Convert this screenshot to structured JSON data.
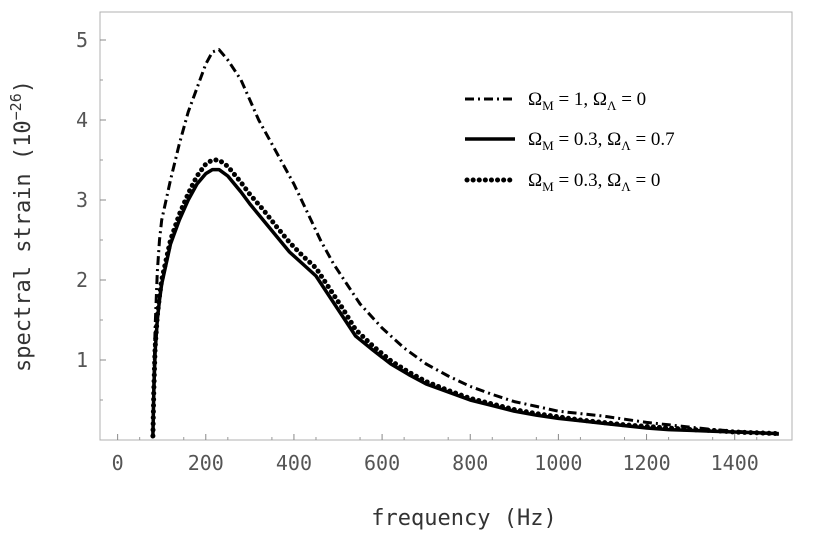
{
  "chart_data": {
    "type": "line",
    "xlabel": "frequency (Hz)",
    "ylabel_prefix": "spectral strain (10",
    "ylabel_exp": "−26",
    "ylabel_suffix": ")",
    "xlim": [
      -40,
      1530
    ],
    "ylim": [
      0,
      5.35
    ],
    "xticks": [
      0,
      200,
      400,
      600,
      800,
      1000,
      1200,
      1400
    ],
    "yticks": [
      1,
      2,
      3,
      4,
      5
    ],
    "grid": false,
    "legend_position": "top-right",
    "series": [
      {
        "name": "ΩM = 1, ΩΛ = 0",
        "legend": {
          "p1": "Ω",
          "s1": "M",
          "p2": " = 1, Ω",
          "s2": "Λ",
          "p3": " = 0"
        },
        "style": "dashdot",
        "x": [
          80,
          82,
          85,
          90,
          95,
          100,
          110,
          120,
          140,
          160,
          180,
          200,
          215,
          230,
          250,
          280,
          300,
          320,
          350,
          380,
          400,
          430,
          460,
          490,
          520,
          550,
          600,
          650,
          700,
          750,
          800,
          850,
          900,
          950,
          1000,
          1050,
          1100,
          1150,
          1200,
          1250,
          1300,
          1350,
          1400,
          1450,
          1500
        ],
        "y": [
          0.05,
          0.7,
          1.4,
          2.1,
          2.5,
          2.75,
          3.0,
          3.25,
          3.7,
          4.1,
          4.4,
          4.7,
          4.85,
          4.88,
          4.75,
          4.5,
          4.25,
          4.0,
          3.7,
          3.4,
          3.2,
          2.85,
          2.5,
          2.2,
          1.95,
          1.7,
          1.4,
          1.15,
          0.95,
          0.8,
          0.67,
          0.57,
          0.48,
          0.42,
          0.36,
          0.33,
          0.3,
          0.26,
          0.22,
          0.19,
          0.16,
          0.13,
          0.11,
          0.09,
          0.07
        ]
      },
      {
        "name": "ΩM = 0.3, ΩΛ = 0.7",
        "legend": {
          "p1": "Ω",
          "s1": "M",
          "p2": " = 0.3, Ω",
          "s2": "Λ",
          "p3": " = 0.7"
        },
        "style": "solid",
        "x": [
          80,
          82,
          85,
          90,
          95,
          100,
          110,
          120,
          140,
          160,
          180,
          200,
          215,
          230,
          250,
          280,
          300,
          330,
          360,
          390,
          420,
          450,
          480,
          510,
          540,
          580,
          620,
          660,
          700,
          750,
          800,
          850,
          900,
          950,
          1000,
          1050,
          1100,
          1150,
          1200,
          1250,
          1300,
          1350,
          1400,
          1450,
          1500
        ],
        "y": [
          0.05,
          0.6,
          1.1,
          1.5,
          1.75,
          1.95,
          2.2,
          2.45,
          2.75,
          3.0,
          3.2,
          3.33,
          3.38,
          3.38,
          3.3,
          3.1,
          2.95,
          2.75,
          2.55,
          2.35,
          2.2,
          2.05,
          1.8,
          1.55,
          1.3,
          1.12,
          0.95,
          0.82,
          0.7,
          0.6,
          0.5,
          0.43,
          0.36,
          0.31,
          0.27,
          0.24,
          0.21,
          0.18,
          0.15,
          0.13,
          0.12,
          0.11,
          0.1,
          0.09,
          0.08
        ]
      },
      {
        "name": "ΩM = 0.3, ΩΛ = 0",
        "legend": {
          "p1": "Ω",
          "s1": "M",
          "p2": " = 0.3, Ω",
          "s2": "Λ",
          "p3": " = 0"
        },
        "style": "dotted",
        "x": [
          80,
          82,
          85,
          90,
          95,
          100,
          110,
          120,
          140,
          160,
          180,
          200,
          215,
          230,
          250,
          280,
          300,
          330,
          360,
          390,
          420,
          450,
          480,
          510,
          540,
          580,
          620,
          660,
          700,
          750,
          800,
          850,
          900,
          950,
          1000,
          1050,
          1100,
          1150,
          1200,
          1250,
          1300,
          1350,
          1400,
          1450,
          1500
        ],
        "y": [
          0.05,
          0.62,
          1.15,
          1.55,
          1.8,
          2.0,
          2.25,
          2.5,
          2.82,
          3.08,
          3.3,
          3.45,
          3.5,
          3.5,
          3.42,
          3.22,
          3.07,
          2.88,
          2.67,
          2.47,
          2.3,
          2.15,
          1.9,
          1.65,
          1.38,
          1.17,
          0.99,
          0.85,
          0.73,
          0.62,
          0.52,
          0.45,
          0.38,
          0.33,
          0.29,
          0.25,
          0.22,
          0.19,
          0.17,
          0.15,
          0.13,
          0.12,
          0.1,
          0.09,
          0.08
        ]
      }
    ]
  }
}
